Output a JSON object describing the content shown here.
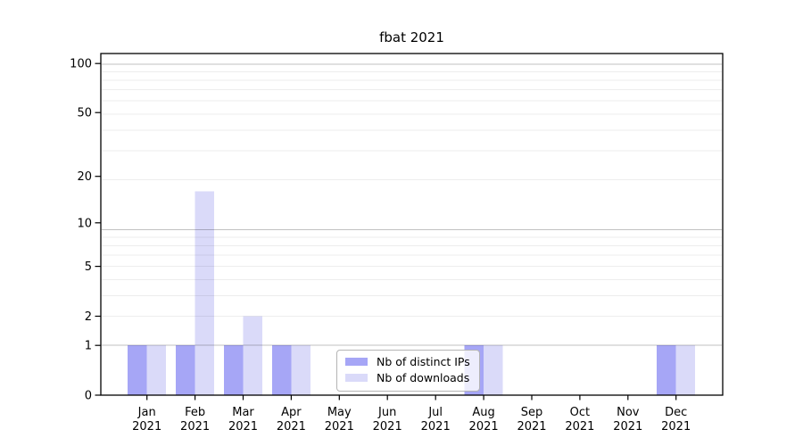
{
  "chart_data": {
    "type": "bar",
    "title": "fbat 2021",
    "categories": [
      "Jan 2021",
      "Feb 2021",
      "Mar 2021",
      "Apr 2021",
      "May 2021",
      "Jun 2021",
      "Jul 2021",
      "Aug 2021",
      "Sep 2021",
      "Oct 2021",
      "Nov 2021",
      "Dec 2021"
    ],
    "series": [
      {
        "name": "Nb of distinct IPs",
        "color": "#a6a6f6",
        "values": [
          1,
          1,
          1,
          1,
          0,
          0,
          0,
          1,
          0,
          0,
          0,
          1
        ]
      },
      {
        "name": "Nb of downloads",
        "color": "#dadaf9",
        "values": [
          1,
          16,
          2,
          1,
          0,
          0,
          0,
          1,
          0,
          0,
          0,
          1
        ]
      }
    ],
    "xlabel": "",
    "ylabel": "",
    "yscale": "log1p",
    "yticks": [
      0,
      1,
      2,
      5,
      10,
      20,
      50,
      100
    ],
    "ylim": [
      0,
      115
    ],
    "grid": "horizontal major+minor",
    "legend_position": "inside bottom-center"
  }
}
